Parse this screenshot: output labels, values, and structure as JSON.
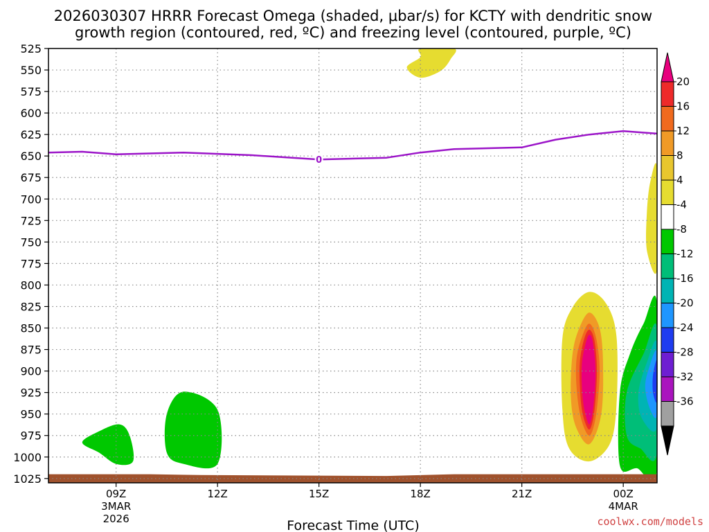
{
  "chart_data": {
    "type": "heatmap",
    "title_line1": "2026030307 HRRR Forecast Omega (shaded, μbar/s) for KCTY with dendritic snow",
    "title_line2": "growth region (contoured, red, ºC) and freezing level (contoured, purple, ºC)",
    "xlabel": "Forecast Time (UTC)",
    "credit": "coolwx.com/models",
    "x_ticks": [
      {
        "hour": 9,
        "label": "09Z",
        "sub1": "3MAR",
        "sub2": "2026"
      },
      {
        "hour": 12,
        "label": "12Z",
        "sub1": "",
        "sub2": ""
      },
      {
        "hour": 15,
        "label": "15Z",
        "sub1": "",
        "sub2": ""
      },
      {
        "hour": 18,
        "label": "18Z",
        "sub1": "",
        "sub2": ""
      },
      {
        "hour": 21,
        "label": "21Z",
        "sub1": "",
        "sub2": ""
      },
      {
        "hour": 24,
        "label": "00Z",
        "sub1": "4MAR",
        "sub2": ""
      }
    ],
    "x_range_hours": [
      7,
      25
    ],
    "y_range_hPa": [
      525,
      1030
    ],
    "y_ticks": [
      "525",
      "550",
      "575",
      "600",
      "625",
      "650",
      "675",
      "700",
      "725",
      "750",
      "775",
      "800",
      "825",
      "850",
      "875",
      "900",
      "925",
      "950",
      "975",
      "1000",
      "1025"
    ],
    "colorbar": {
      "labels": [
        "20",
        "16",
        "12",
        "8",
        "4",
        "-4",
        "-8",
        "-12",
        "-16",
        "-20",
        "-24",
        "-28",
        "-32",
        "-36"
      ],
      "colors": [
        "#e8007e",
        "#ee2a2a",
        "#f06a1e",
        "#f09a26",
        "#e8c62e",
        "#e6dc30",
        "#ffffff",
        "#00c800",
        "#00be78",
        "#00b4b4",
        "#1e96ff",
        "#1e3cf0",
        "#6e1ed2",
        "#aa14be",
        "#a0a0a0"
      ]
    },
    "freezing_level": {
      "label": "0",
      "points": [
        {
          "h": 7.0,
          "p": 646
        },
        {
          "h": 8.0,
          "p": 645
        },
        {
          "h": 9.0,
          "p": 648
        },
        {
          "h": 11.0,
          "p": 646
        },
        {
          "h": 13.0,
          "p": 649
        },
        {
          "h": 15.0,
          "p": 654
        },
        {
          "h": 17.0,
          "p": 652
        },
        {
          "h": 18.0,
          "p": 646
        },
        {
          "h": 19.0,
          "p": 642
        },
        {
          "h": 21.0,
          "p": 640
        },
        {
          "h": 22.0,
          "p": 631
        },
        {
          "h": 23.0,
          "p": 625
        },
        {
          "h": 24.0,
          "p": 621
        },
        {
          "h": 25.0,
          "p": 624
        }
      ]
    },
    "omega_regions": [
      {
        "name": "rising-yellow-top",
        "value": 4,
        "color": "#e6dc30",
        "points": [
          {
            "h": 18.0,
            "p": 525
          },
          {
            "h": 19.0,
            "p": 525
          },
          {
            "h": 18.9,
            "p": 537
          },
          {
            "h": 18.6,
            "p": 551
          },
          {
            "h": 18.0,
            "p": 559
          },
          {
            "h": 17.6,
            "p": 547
          },
          {
            "h": 18.0,
            "p": 535
          }
        ]
      },
      {
        "name": "rising-yellow-right",
        "value": 4,
        "color": "#e6dc30",
        "points": [
          {
            "h": 25.0,
            "p": 664
          },
          {
            "h": 24.8,
            "p": 680
          },
          {
            "h": 24.7,
            "p": 715
          },
          {
            "h": 24.7,
            "p": 760
          },
          {
            "h": 25.0,
            "p": 782
          }
        ]
      },
      {
        "name": "sinking-green-left",
        "value": -4,
        "color": "#00c800",
        "points": [
          {
            "h": 8.0,
            "p": 983
          },
          {
            "h": 8.5,
            "p": 970
          },
          {
            "h": 9.1,
            "p": 962
          },
          {
            "h": 9.4,
            "p": 975
          },
          {
            "h": 9.5,
            "p": 1005
          },
          {
            "h": 9.0,
            "p": 1008
          },
          {
            "h": 8.5,
            "p": 995
          }
        ]
      },
      {
        "name": "sinking-green-mid",
        "value": -4,
        "color": "#00c800",
        "points": [
          {
            "h": 10.5,
            "p": 950
          },
          {
            "h": 11.0,
            "p": 924
          },
          {
            "h": 12.0,
            "p": 945
          },
          {
            "h": 12.0,
            "p": 1008
          },
          {
            "h": 11.0,
            "p": 1008
          },
          {
            "h": 10.5,
            "p": 995
          }
        ]
      },
      {
        "name": "rising-yellow-column",
        "value": 4,
        "color": "#e6dc30",
        "points": [
          {
            "h": 22.2,
            "p": 862
          },
          {
            "h": 22.5,
            "p": 826
          },
          {
            "h": 23.0,
            "p": 808
          },
          {
            "h": 23.5,
            "p": 822
          },
          {
            "h": 23.8,
            "p": 860
          },
          {
            "h": 23.8,
            "p": 940
          },
          {
            "h": 23.6,
            "p": 985
          },
          {
            "h": 23.0,
            "p": 1005
          },
          {
            "h": 22.4,
            "p": 990
          },
          {
            "h": 22.2,
            "p": 945
          }
        ]
      },
      {
        "name": "rising-orange-column",
        "value": 8,
        "color": "#f09a26",
        "points": [
          {
            "h": 22.5,
            "p": 880
          },
          {
            "h": 22.7,
            "p": 850
          },
          {
            "h": 23.0,
            "p": 832
          },
          {
            "h": 23.3,
            "p": 850
          },
          {
            "h": 23.4,
            "p": 890
          },
          {
            "h": 23.35,
            "p": 950
          },
          {
            "h": 23.0,
            "p": 985
          },
          {
            "h": 22.6,
            "p": 965
          },
          {
            "h": 22.45,
            "p": 930
          }
        ]
      },
      {
        "name": "rising-red-orange-column",
        "value": 12,
        "color": "#f06a1e",
        "points": [
          {
            "h": 22.62,
            "p": 885
          },
          {
            "h": 22.8,
            "p": 858
          },
          {
            "h": 23.0,
            "p": 845
          },
          {
            "h": 23.2,
            "p": 862
          },
          {
            "h": 23.3,
            "p": 900
          },
          {
            "h": 23.2,
            "p": 950
          },
          {
            "h": 23.0,
            "p": 975
          },
          {
            "h": 22.75,
            "p": 955
          },
          {
            "h": 22.62,
            "p": 920
          }
        ]
      },
      {
        "name": "rising-red-column",
        "value": 16,
        "color": "#ee2a2a",
        "points": [
          {
            "h": 22.72,
            "p": 888
          },
          {
            "h": 22.85,
            "p": 862
          },
          {
            "h": 23.0,
            "p": 852
          },
          {
            "h": 23.15,
            "p": 865
          },
          {
            "h": 23.22,
            "p": 900
          },
          {
            "h": 23.15,
            "p": 945
          },
          {
            "h": 23.0,
            "p": 968
          },
          {
            "h": 22.8,
            "p": 950
          },
          {
            "h": 22.72,
            "p": 920
          }
        ]
      },
      {
        "name": "rising-magenta-column",
        "value": 20,
        "color": "#e8007e",
        "points": [
          {
            "h": 22.78,
            "p": 890
          },
          {
            "h": 22.9,
            "p": 866
          },
          {
            "h": 23.0,
            "p": 858
          },
          {
            "h": 23.1,
            "p": 866
          },
          {
            "h": 23.18,
            "p": 900
          },
          {
            "h": 23.12,
            "p": 940
          },
          {
            "h": 23.0,
            "p": 962
          },
          {
            "h": 22.85,
            "p": 945
          },
          {
            "h": 22.78,
            "p": 920
          }
        ]
      },
      {
        "name": "sinking-green-right",
        "value": -4,
        "color": "#00c800",
        "points": [
          {
            "h": 25.0,
            "p": 822
          },
          {
            "h": 24.6,
            "p": 845
          },
          {
            "h": 24.2,
            "p": 880
          },
          {
            "h": 23.9,
            "p": 925
          },
          {
            "h": 23.9,
            "p": 1010
          },
          {
            "h": 24.4,
            "p": 1013
          },
          {
            "h": 25.0,
            "p": 1015
          }
        ]
      },
      {
        "name": "sinking-teal-right",
        "value": -8,
        "color": "#00be78",
        "points": [
          {
            "h": 25.0,
            "p": 850
          },
          {
            "h": 24.6,
            "p": 880
          },
          {
            "h": 24.1,
            "p": 925
          },
          {
            "h": 24.1,
            "p": 975
          },
          {
            "h": 24.5,
            "p": 990
          },
          {
            "h": 25.0,
            "p": 995
          }
        ]
      },
      {
        "name": "sinking-cyan-right",
        "value": -12,
        "color": "#00b4b4",
        "points": [
          {
            "h": 25.0,
            "p": 868
          },
          {
            "h": 24.7,
            "p": 890
          },
          {
            "h": 24.45,
            "p": 925
          },
          {
            "h": 24.55,
            "p": 955
          },
          {
            "h": 25.0,
            "p": 965
          }
        ]
      },
      {
        "name": "sinking-blue-right",
        "value": -16,
        "color": "#1e96ff",
        "points": [
          {
            "h": 25.0,
            "p": 878
          },
          {
            "h": 24.75,
            "p": 898
          },
          {
            "h": 24.65,
            "p": 920
          },
          {
            "h": 24.8,
            "p": 945
          },
          {
            "h": 25.0,
            "p": 950
          }
        ]
      },
      {
        "name": "sinking-darkblue-right",
        "value": -20,
        "color": "#1e3cf0",
        "points": [
          {
            "h": 25.0,
            "p": 888
          },
          {
            "h": 24.88,
            "p": 905
          },
          {
            "h": 24.88,
            "p": 925
          },
          {
            "h": 25.0,
            "p": 935
          }
        ]
      }
    ],
    "ground": {
      "color": "#a0522d",
      "points": [
        {
          "h": 7.0,
          "p": 1020
        },
        {
          "h": 10.0,
          "p": 1020
        },
        {
          "h": 11.5,
          "p": 1021
        },
        {
          "h": 17.0,
          "p": 1022
        },
        {
          "h": 19.0,
          "p": 1020
        },
        {
          "h": 25.0,
          "p": 1020
        }
      ]
    }
  }
}
